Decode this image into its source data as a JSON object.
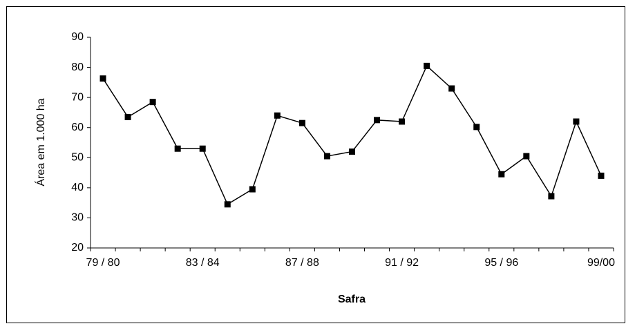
{
  "chart_data": {
    "type": "line",
    "categories": [
      "79 / 80",
      null,
      null,
      null,
      "83 / 84",
      null,
      null,
      null,
      "87 / 88",
      null,
      null,
      null,
      "91 / 92",
      null,
      null,
      null,
      "95 / 96",
      null,
      null,
      null,
      "99/00"
    ],
    "series": [
      {
        "name": "Área",
        "color": "#000000",
        "values": [
          76.3,
          63.5,
          68.5,
          53,
          53,
          34.5,
          39.5,
          64,
          61.5,
          50.5,
          52,
          62.5,
          62,
          80.5,
          73,
          60.2,
          44.5,
          50.5,
          37.2,
          62,
          44
        ]
      }
    ],
    "ylim": [
      20,
      90
    ],
    "yticks": [
      20,
      30,
      40,
      50,
      60,
      70,
      80,
      90
    ],
    "ylabel": "Área em 1.000 ha",
    "xlabel": "Safra",
    "grid": false
  }
}
